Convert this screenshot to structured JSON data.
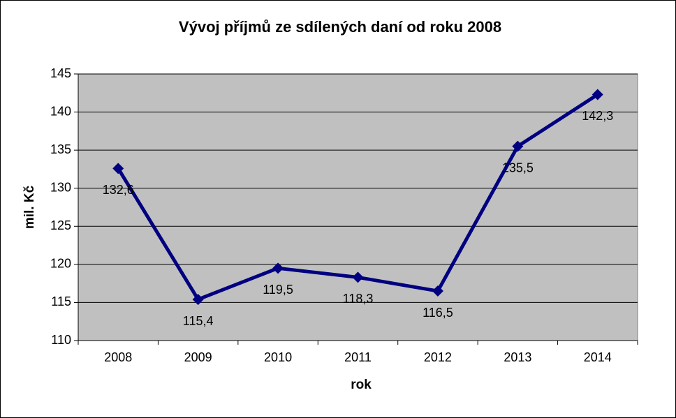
{
  "chart_data": {
    "type": "line",
    "title": "Vývoj příjmů ze sdílených daní od roku 2008",
    "x_label": "rok",
    "y_label": "mil. Kč",
    "categories": [
      "2008",
      "2009",
      "2010",
      "2011",
      "2012",
      "2013",
      "2014"
    ],
    "series": [
      {
        "name": "příjmy",
        "color": "#000080",
        "values": [
          132.6,
          115.4,
          119.5,
          118.3,
          116.5,
          135.5,
          142.3
        ],
        "value_labels": [
          "132,6",
          "115,4",
          "119,5",
          "118,3",
          "116,5",
          "135,5",
          "142,3"
        ]
      }
    ],
    "ylim": [
      110,
      145
    ],
    "yticks": [
      110,
      115,
      120,
      125,
      130,
      135,
      140,
      145
    ],
    "grid": true,
    "plot_background": "#c0c0c0"
  }
}
